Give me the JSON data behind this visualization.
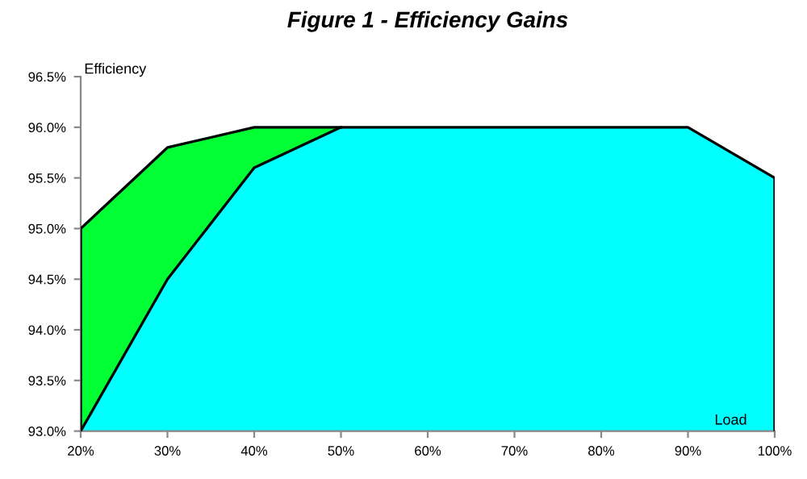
{
  "chart_data": {
    "type": "area",
    "title": "Figure 1 - Efficiency Gains",
    "xlabel": "Load",
    "ylabel": "Efficiency",
    "series": [
      {
        "color": "#00ff33",
        "x": [
          20,
          25,
          30,
          40,
          50
        ],
        "values": [
          95.0,
          95.4,
          95.8,
          96.0,
          96.0
        ]
      },
      {
        "color": "#00ffff",
        "x": [
          20,
          30,
          40,
          50,
          60,
          70,
          80,
          90,
          100
        ],
        "values": [
          93.0,
          94.5,
          95.6,
          96.0,
          96.0,
          96.0,
          96.0,
          96.0,
          95.5
        ]
      }
    ],
    "xlim": [
      20,
      100
    ],
    "xticks": [
      {
        "value": 20,
        "label": "20%"
      },
      {
        "value": 30,
        "label": "30%"
      },
      {
        "value": 40,
        "label": "40%"
      },
      {
        "value": 50,
        "label": "50%"
      },
      {
        "value": 60,
        "label": "60%"
      },
      {
        "value": 70,
        "label": "70%"
      },
      {
        "value": 80,
        "label": "80%"
      },
      {
        "value": 90,
        "label": "90%"
      },
      {
        "value": 100,
        "label": "100%"
      }
    ],
    "ylim": [
      93.0,
      96.5
    ],
    "yticks": [
      {
        "value": 93.0,
        "label": "93.0%"
      },
      {
        "value": 93.5,
        "label": "93.5%"
      },
      {
        "value": 94.0,
        "label": "94.0%"
      },
      {
        "value": 94.5,
        "label": "94.5%"
      },
      {
        "value": 95.0,
        "label": "95.0%"
      },
      {
        "value": 95.5,
        "label": "95.5%"
      },
      {
        "value": 96.0,
        "label": "96.0%"
      },
      {
        "value": 96.5,
        "label": "96.5%"
      }
    ],
    "grid": false,
    "legend": false
  }
}
